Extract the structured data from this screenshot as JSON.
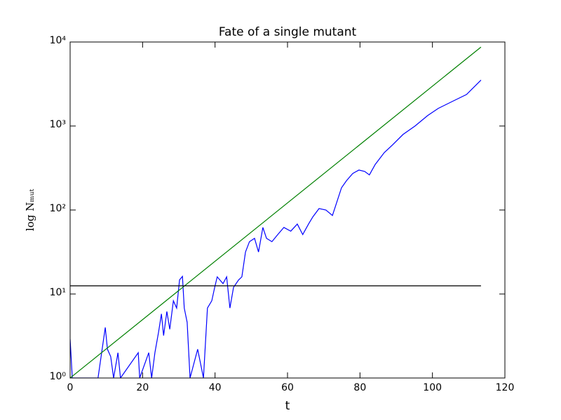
{
  "chart_data": {
    "type": "line",
    "title": "Fate of a single mutant",
    "x_label": "t",
    "y_label": "log Nₘᵤₜ",
    "yscale": "log",
    "xlim": [
      0,
      120
    ],
    "ylim": [
      1,
      10000
    ],
    "xticks": [
      0,
      20,
      40,
      60,
      80,
      100,
      120
    ],
    "yticks": [
      {
        "value": 1,
        "label": "10⁰"
      },
      {
        "value": 10,
        "label": "10¹"
      },
      {
        "value": 100,
        "label": "10²"
      },
      {
        "value": 1000,
        "label": "10³"
      },
      {
        "value": 10000,
        "label": "10⁴"
      }
    ],
    "series": [
      {
        "color": "#0000ff",
        "x": [
          0,
          0.6,
          7.7,
          9.7,
          10.3,
          11.2,
          12,
          13.2,
          13.9,
          18.8,
          19.2,
          21.7,
          22.5,
          23.4,
          24.4,
          25.2,
          25.8,
          26.7,
          27.5,
          28.5,
          29.4,
          30.2,
          31,
          31.5,
          32.3,
          33.1,
          35.2,
          36.8,
          37.9,
          39.1,
          39.9,
          40.6,
          42.2,
          43.2,
          44.1,
          45.1,
          46.5,
          47.4,
          48.4,
          49.5,
          50.9,
          52,
          53.2,
          54.2,
          55.7,
          57.3,
          59,
          60.9,
          62.7,
          64.2,
          65.8,
          67,
          68.7,
          70.6,
          72.4,
          73.5,
          74.9,
          76.3,
          78,
          79.7,
          81.3,
          82.6,
          84.2,
          86.7,
          89,
          91.9,
          95.2,
          98.7,
          101.6,
          105.5,
          109.4,
          113.4
        ],
        "values": [
          2.9,
          1,
          1,
          4,
          2.2,
          1.8,
          1,
          2,
          1,
          2,
          1,
          2,
          1,
          2,
          3.5,
          5.8,
          3.2,
          6.2,
          3.8,
          8.3,
          6.8,
          14.7,
          16.2,
          6.8,
          4.6,
          1,
          2.2,
          1,
          6.8,
          8.3,
          12,
          16,
          13.3,
          16,
          6.8,
          12,
          14.7,
          16,
          31.6,
          42,
          46,
          31.6,
          62,
          46,
          42,
          51,
          62,
          56,
          68,
          51,
          68,
          83,
          104,
          100,
          86,
          120,
          184,
          224,
          272,
          299,
          288,
          262,
          348,
          482,
          596,
          794,
          1000,
          1334,
          1619,
          1963,
          2371,
          3520
        ]
      },
      {
        "color": "#008000",
        "x": [
          0,
          113.4
        ],
        "values": [
          1,
          8700
        ]
      },
      {
        "color": "#000000",
        "x": [
          0,
          113.4
        ],
        "values": [
          12.5,
          12.5
        ]
      }
    ]
  }
}
